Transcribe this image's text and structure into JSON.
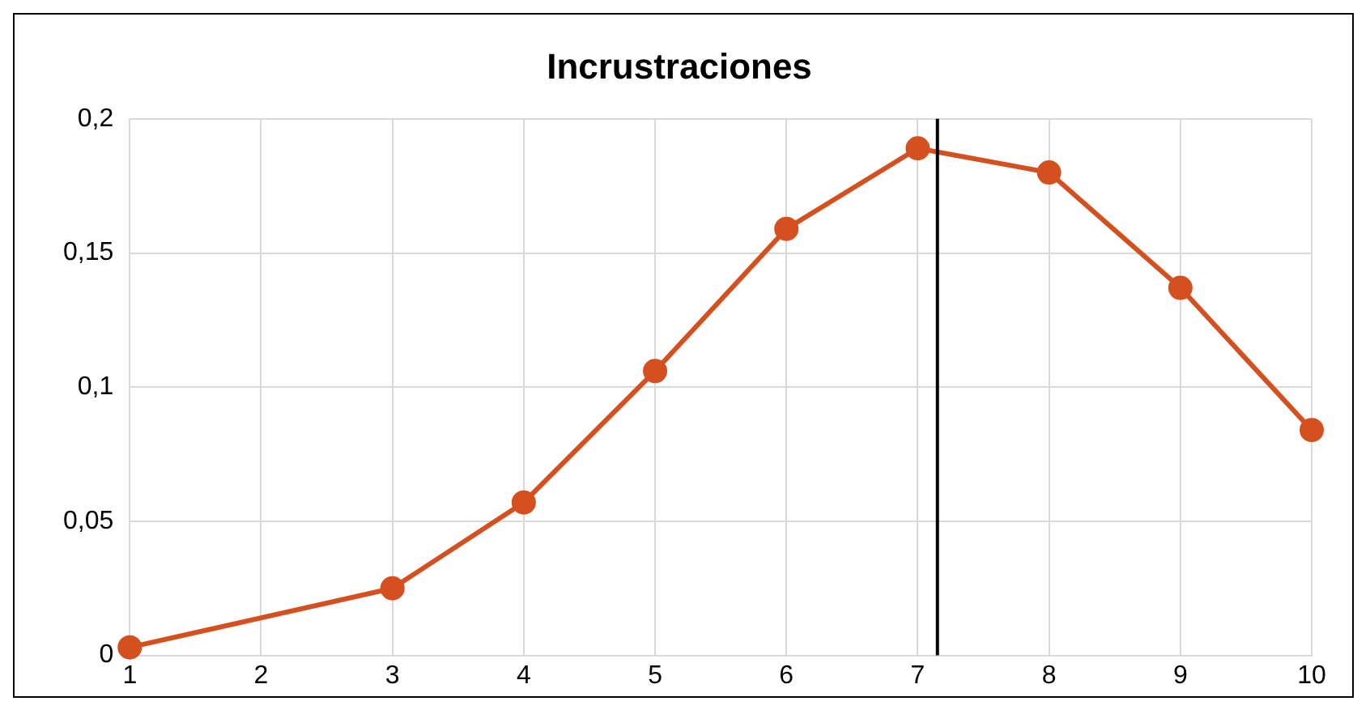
{
  "chart_data": {
    "type": "line",
    "title": "Incrustraciones",
    "x": [
      1,
      3,
      4,
      5,
      6,
      7,
      8,
      9,
      10
    ],
    "series": [
      {
        "color": "#d5501f",
        "values": [
          0.003,
          0.025,
          0.057,
          0.106,
          0.159,
          0.189,
          0.18,
          0.137,
          0.084
        ]
      }
    ],
    "xlim": [
      1,
      10
    ],
    "xticks": [
      1,
      2,
      3,
      4,
      5,
      6,
      7,
      8,
      9,
      10
    ],
    "ylim": [
      0,
      0.2
    ],
    "yticks": [
      0,
      {
        "value": 0.05,
        "label": "0,05"
      },
      {
        "value": 0.1,
        "label": "0,1"
      },
      {
        "value": 0.15,
        "label": "0,15"
      },
      {
        "value": 0.2,
        "label": "0,2"
      }
    ],
    "ref_lines": [
      {
        "axis": "x",
        "value": 7.15,
        "color": "#000000"
      }
    ],
    "grid": true,
    "legend": false,
    "marker": "circle",
    "line_style": "solid"
  }
}
